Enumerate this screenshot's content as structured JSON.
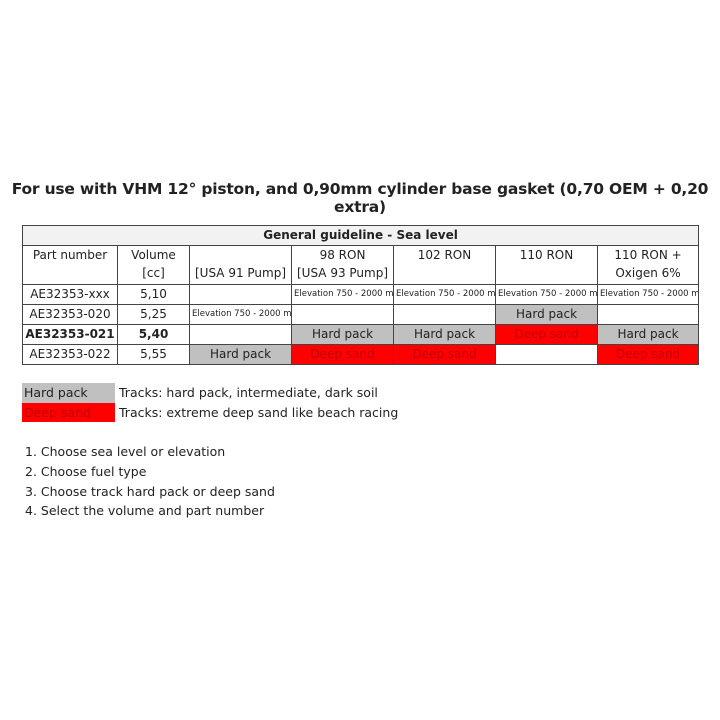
{
  "title": "For use with VHM 12° piston, and 0,90mm cylinder base gasket (0,70 OEM + 0,20 extra)",
  "table": {
    "caption": "General guideline - Sea level",
    "headers": [
      "Part number\n",
      "Volume\n[cc]",
      "\n[USA 91 Pump]",
      "98 RON\n[USA 93 Pump]",
      "102 RON\n",
      "110 RON\n",
      "110 RON +\nOxigen 6%"
    ],
    "rows": [
      {
        "bold": false,
        "cells": [
          {
            "text": "AE32353-xxx"
          },
          {
            "text": "5,10"
          },
          {
            "text": ""
          },
          {
            "text": "Elevation 750 - 2000 m",
            "kind": "small"
          },
          {
            "text": "Elevation 750 - 2000 m",
            "kind": "small"
          },
          {
            "text": "Elevation 750 - 2000 m",
            "kind": "small"
          },
          {
            "text": "Elevation 750 - 2000 m",
            "kind": "small"
          }
        ]
      },
      {
        "bold": false,
        "cells": [
          {
            "text": "AE32353-020"
          },
          {
            "text": "5,25"
          },
          {
            "text": "Elevation 750 - 2000 m",
            "kind": "small"
          },
          {
            "text": ""
          },
          {
            "text": ""
          },
          {
            "text": "Hard pack",
            "kind": "hard"
          },
          {
            "text": ""
          }
        ]
      },
      {
        "bold": true,
        "cells": [
          {
            "text": "AE32353-021"
          },
          {
            "text": "5,40"
          },
          {
            "text": ""
          },
          {
            "text": "Hard pack",
            "kind": "hard"
          },
          {
            "text": "Hard pack",
            "kind": "hard"
          },
          {
            "text": "Deep sand",
            "kind": "deep"
          },
          {
            "text": "Hard pack",
            "kind": "hard"
          }
        ]
      },
      {
        "bold": false,
        "cells": [
          {
            "text": "AE32353-022"
          },
          {
            "text": "5,55"
          },
          {
            "text": "Hard pack",
            "kind": "hard"
          },
          {
            "text": "Deep sand",
            "kind": "deep"
          },
          {
            "text": "Deep sand",
            "kind": "deep"
          },
          {
            "text": ""
          },
          {
            "text": "Deep sand",
            "kind": "deep"
          }
        ]
      }
    ]
  },
  "legend": [
    {
      "label": "Hard pack",
      "kind": "hard",
      "description": "Tracks: hard pack, intermediate, dark soil"
    },
    {
      "label": "Deep sand",
      "kind": "deep",
      "description": "Tracks: extreme deep sand like beach racing"
    }
  ],
  "colors": {
    "hard_pack": "#c0c0c0",
    "deep_sand": "#ff0000",
    "deep_sand_text": "#c00000",
    "caption_bg": "#f2f2f2"
  },
  "steps": [
    "1. Choose sea level or elevation",
    "2. Choose fuel type",
    "3. Choose track hard pack or deep sand",
    "4. Select the volume and part number"
  ]
}
